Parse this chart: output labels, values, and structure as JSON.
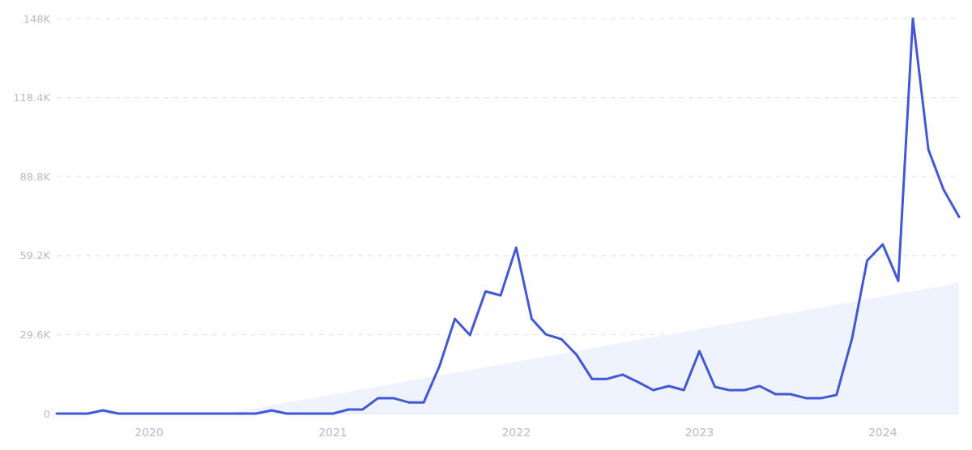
{
  "chart_data": {
    "type": "line",
    "x": [
      "2019-07",
      "2019-08",
      "2019-09",
      "2019-10",
      "2019-11",
      "2019-12",
      "2020-01",
      "2020-02",
      "2020-03",
      "2020-04",
      "2020-05",
      "2020-06",
      "2020-07",
      "2020-08",
      "2020-09",
      "2020-10",
      "2020-11",
      "2020-12",
      "2021-01",
      "2021-02",
      "2021-03",
      "2021-04",
      "2021-05",
      "2021-06",
      "2021-07",
      "2021-08",
      "2021-09",
      "2021-10",
      "2021-11",
      "2021-12",
      "2022-01",
      "2022-02",
      "2022-03",
      "2022-04",
      "2022-05",
      "2022-06",
      "2022-07",
      "2022-08",
      "2022-09",
      "2022-10",
      "2022-11",
      "2022-12",
      "2023-01",
      "2023-02",
      "2023-03",
      "2023-04",
      "2023-05",
      "2023-06",
      "2023-07",
      "2023-08",
      "2023-09",
      "2023-10",
      "2023-11",
      "2023-12",
      "2024-01",
      "2024-02",
      "2024-03",
      "2024-04",
      "2024-05",
      "2024-06"
    ],
    "series": [
      {
        "type": "area",
        "x": [
          "2020-06",
          "2024-06"
        ],
        "values": [
          0,
          49000
        ],
        "color": "#eef3fd"
      },
      {
        "color": "#4358d6",
        "values": [
          0,
          0,
          0,
          1200,
          0,
          0,
          0,
          0,
          0,
          0,
          0,
          0,
          0,
          0,
          1200,
          0,
          0,
          0,
          0,
          1500,
          1500,
          5800,
          5800,
          4200,
          4200,
          17600,
          35500,
          29400,
          45800,
          44300,
          62200,
          35500,
          29700,
          27900,
          22100,
          13000,
          13000,
          14600,
          11800,
          8800,
          10300,
          8800,
          23400,
          10000,
          8800,
          8800,
          10300,
          7300,
          7300,
          5800,
          5800,
          7000,
          28200,
          57300,
          63400,
          49700,
          148000,
          98900,
          84000,
          73700
        ]
      }
    ],
    "xlim": [
      "2019-07",
      "2024-06"
    ],
    "xticks": [
      "2020",
      "2021",
      "2022",
      "2023",
      "2024"
    ],
    "ylim": [
      0,
      148000
    ],
    "yticks": [
      0,
      {
        "value": 29600,
        "label": "29.6K"
      },
      {
        "value": 59200,
        "label": "59.2K"
      },
      {
        "value": 88800,
        "label": "88.8K"
      },
      {
        "value": 118400,
        "label": "118.4K"
      },
      {
        "value": 148000,
        "label": "148K"
      }
    ],
    "grid": "y",
    "line_style": "solid"
  }
}
